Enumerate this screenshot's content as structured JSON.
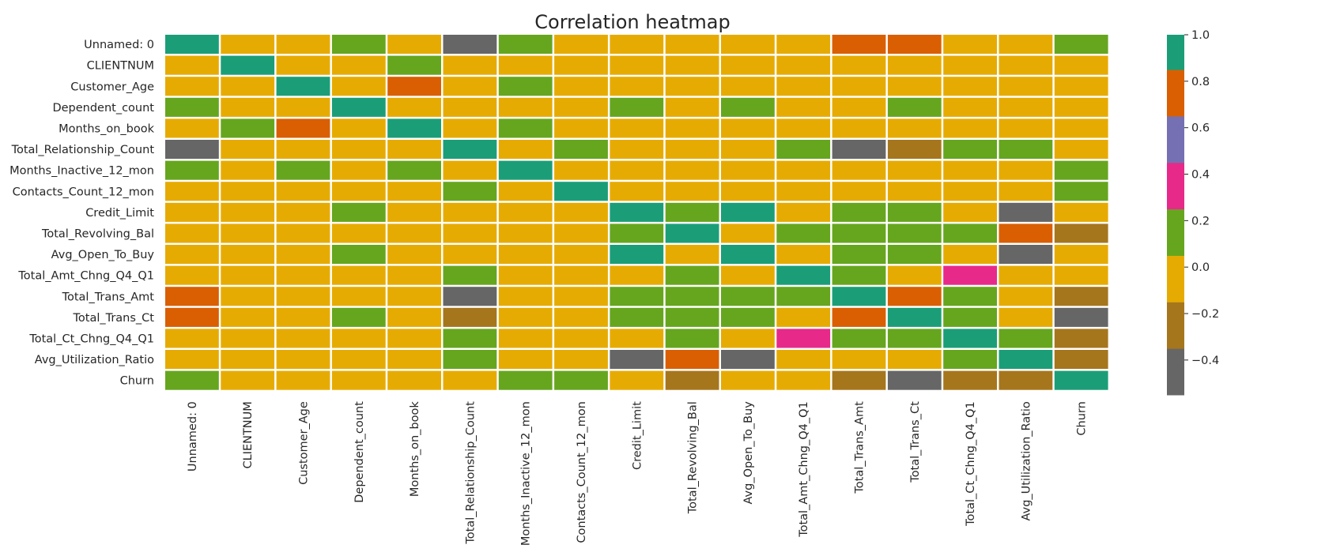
{
  "chart_data": {
    "type": "heatmap",
    "title": "Correlation heatmap",
    "rows": [
      "Unnamed: 0",
      "CLIENTNUM",
      "Customer_Age",
      "Dependent_count",
      "Months_on_book",
      "Total_Relationship_Count",
      "Months_Inactive_12_mon",
      "Contacts_Count_12_mon",
      "Credit_Limit",
      "Total_Revolving_Bal",
      "Avg_Open_To_Buy",
      "Total_Amt_Chng_Q4_Q1",
      "Total_Trans_Amt",
      "Total_Trans_Ct",
      "Total_Ct_Chng_Q4_Q1",
      "Avg_Utilization_Ratio",
      "Churn"
    ],
    "columns": [
      "Unnamed: 0",
      "CLIENTNUM",
      "Customer_Age",
      "Dependent_count",
      "Months_on_book",
      "Total_Relationship_Count",
      "Months_Inactive_12_mon",
      "Contacts_Count_12_mon",
      "Credit_Limit",
      "Total_Revolving_Bal",
      "Avg_Open_To_Buy",
      "Total_Amt_Chng_Q4_Q1",
      "Total_Trans_Amt",
      "Total_Trans_Ct",
      "Total_Ct_Chng_Q4_Q1",
      "Avg_Utilization_Ratio",
      "Churn"
    ],
    "values": [
      [
        1.0,
        0.0,
        0.0,
        0.1,
        0.0,
        -0.5,
        0.1,
        0.0,
        0.0,
        0.0,
        0.0,
        0.0,
        0.7,
        0.7,
        0.0,
        0.0,
        0.1
      ],
      [
        0.0,
        1.0,
        0.0,
        0.0,
        0.1,
        0.0,
        0.0,
        0.0,
        0.0,
        0.0,
        0.0,
        0.0,
        0.0,
        0.0,
        0.0,
        0.0,
        0.0
      ],
      [
        0.0,
        0.0,
        1.0,
        0.0,
        0.7,
        0.0,
        0.1,
        0.0,
        0.0,
        0.0,
        0.0,
        0.0,
        0.0,
        0.0,
        0.0,
        0.0,
        0.0
      ],
      [
        0.1,
        0.0,
        0.0,
        1.0,
        0.0,
        0.0,
        0.0,
        0.0,
        0.1,
        0.0,
        0.1,
        0.0,
        0.0,
        0.1,
        0.0,
        0.0,
        0.0
      ],
      [
        0.0,
        0.1,
        0.7,
        0.0,
        1.0,
        0.0,
        0.1,
        0.0,
        0.0,
        0.0,
        0.0,
        0.0,
        0.0,
        0.0,
        0.0,
        0.0,
        0.0
      ],
      [
        -0.5,
        0.0,
        0.0,
        0.0,
        0.0,
        1.0,
        0.0,
        0.1,
        0.0,
        0.0,
        0.0,
        0.1,
        -0.5,
        -0.3,
        0.1,
        0.1,
        0.0
      ],
      [
        0.1,
        0.0,
        0.1,
        0.0,
        0.1,
        0.0,
        1.0,
        0.0,
        0.0,
        0.0,
        0.0,
        0.0,
        0.0,
        0.0,
        0.0,
        0.0,
        0.1
      ],
      [
        0.0,
        0.0,
        0.0,
        0.0,
        0.0,
        0.1,
        0.0,
        1.0,
        0.0,
        0.0,
        0.0,
        0.0,
        0.0,
        0.0,
        0.0,
        0.0,
        0.1
      ],
      [
        0.0,
        0.0,
        0.0,
        0.1,
        0.0,
        0.0,
        0.0,
        0.0,
        1.0,
        0.1,
        0.9,
        0.0,
        0.1,
        0.1,
        0.0,
        -0.5,
        0.0
      ],
      [
        0.0,
        0.0,
        0.0,
        0.0,
        0.0,
        0.0,
        0.0,
        0.0,
        0.1,
        1.0,
        0.0,
        0.1,
        0.1,
        0.1,
        0.1,
        0.7,
        -0.3
      ],
      [
        0.0,
        0.0,
        0.0,
        0.1,
        0.0,
        0.0,
        0.0,
        0.0,
        0.9,
        0.0,
        1.0,
        0.0,
        0.1,
        0.1,
        0.0,
        -0.5,
        0.0
      ],
      [
        0.0,
        0.0,
        0.0,
        0.0,
        0.0,
        0.1,
        0.0,
        0.0,
        0.0,
        0.1,
        0.0,
        1.0,
        0.1,
        0.0,
        0.4,
        0.0,
        0.0
      ],
      [
        0.7,
        0.0,
        0.0,
        0.0,
        0.0,
        -0.5,
        0.0,
        0.0,
        0.1,
        0.1,
        0.1,
        0.1,
        1.0,
        0.7,
        0.1,
        0.0,
        -0.3
      ],
      [
        0.7,
        0.0,
        0.0,
        0.1,
        0.0,
        -0.3,
        0.0,
        0.0,
        0.1,
        0.1,
        0.1,
        0.0,
        0.7,
        1.0,
        0.1,
        0.0,
        -0.5
      ],
      [
        0.0,
        0.0,
        0.0,
        0.0,
        0.0,
        0.1,
        0.0,
        0.0,
        0.0,
        0.1,
        0.0,
        0.4,
        0.1,
        0.1,
        1.0,
        0.1,
        -0.3
      ],
      [
        0.0,
        0.0,
        0.0,
        0.0,
        0.0,
        0.1,
        0.0,
        0.0,
        -0.5,
        0.7,
        -0.5,
        0.0,
        0.0,
        0.0,
        0.1,
        1.0,
        -0.3
      ],
      [
        0.1,
        0.0,
        0.0,
        0.0,
        0.0,
        0.0,
        0.1,
        0.1,
        0.0,
        -0.3,
        0.0,
        0.0,
        -0.3,
        -0.5,
        -0.3,
        -0.3,
        1.0
      ]
    ],
    "vmin": -0.55,
    "vmax": 1.0,
    "colorbar": {
      "ticks": [
        "1.0",
        "0.8",
        "0.6",
        "0.4",
        "0.2",
        "0.0",
        "−0.2",
        "−0.4"
      ],
      "tick_values": [
        1.0,
        0.8,
        0.6,
        0.4,
        0.2,
        0.0,
        -0.2,
        -0.4
      ],
      "bins": [
        {
          "from": -0.55,
          "to": -0.35,
          "color": "#666666"
        },
        {
          "from": -0.35,
          "to": -0.15,
          "color": "#a6761d"
        },
        {
          "from": -0.15,
          "to": 0.05,
          "color": "#e6ab02"
        },
        {
          "from": 0.05,
          "to": 0.25,
          "color": "#66a61e"
        },
        {
          "from": 0.25,
          "to": 0.45,
          "color": "#e7298a"
        },
        {
          "from": 0.45,
          "to": 0.65,
          "color": "#7570b3"
        },
        {
          "from": 0.65,
          "to": 0.85,
          "color": "#d95f02"
        },
        {
          "from": 0.85,
          "to": 1.0,
          "color": "#1b9e77"
        }
      ]
    },
    "grid": false,
    "cell_separator_color": "#ffffff"
  }
}
